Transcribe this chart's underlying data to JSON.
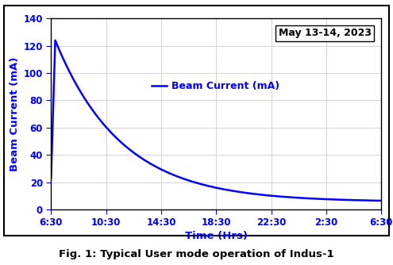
{
  "xlabel": "Time (Hrs)",
  "ylabel": "Beam Current (mA)",
  "annotation": "May 13-14, 2023",
  "legend_label": "Beam Current (mA)",
  "caption": "Fig. 1: Typical User mode operation of Indus-1",
  "xtick_labels": [
    "6:30",
    "10:30",
    "14:30",
    "18:30",
    "22:30",
    "2:30",
    "6:30"
  ],
  "ylim": [
    0,
    140
  ],
  "yticks": [
    0,
    20,
    40,
    60,
    80,
    100,
    120,
    140
  ],
  "xlim": [
    0,
    24
  ],
  "line_color": "#0000FF",
  "axis_label_color": "#0000FF",
  "tick_color": "#0000FF",
  "grid_color": "#cccccc",
  "annotation_color": "#000000",
  "caption_color": "#000000",
  "rise_time": 0.3,
  "peak_current": 124.0,
  "initial_current": 23.0,
  "decay_tau": 4.8,
  "final_current": 5.5
}
